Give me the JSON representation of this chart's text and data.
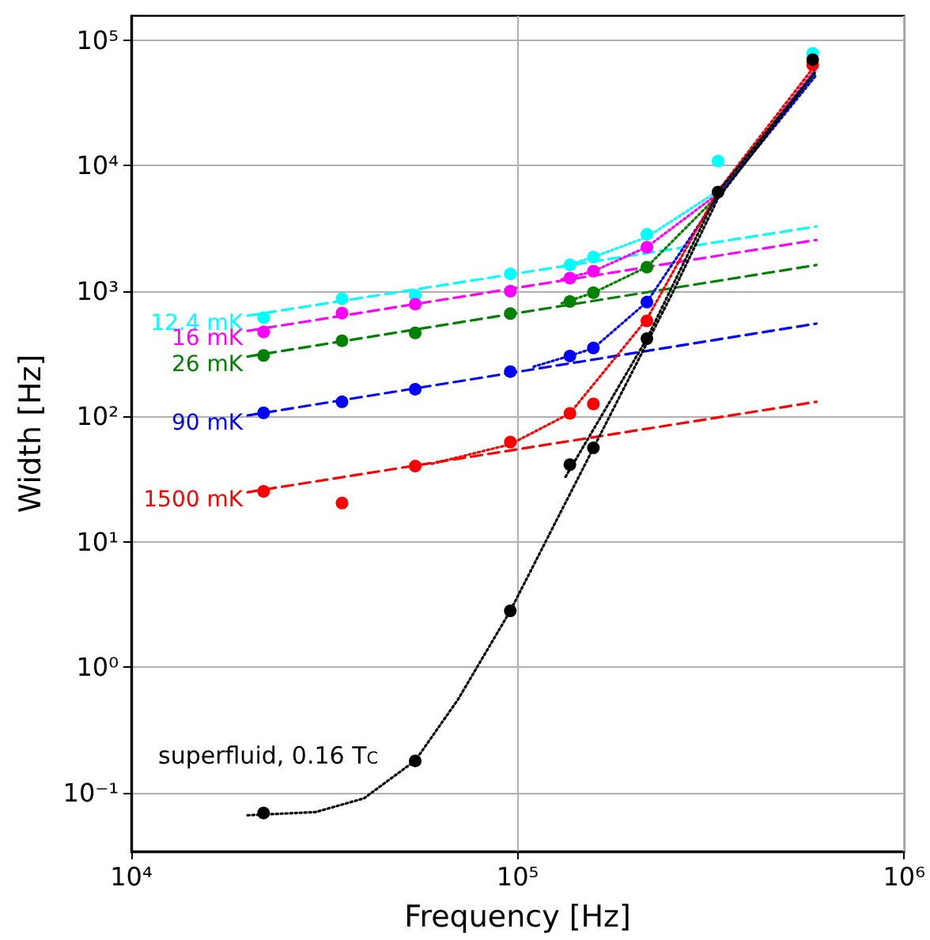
{
  "chart_data": {
    "type": "scatter",
    "xlabel": "Frequency [Hz]",
    "ylabel": "Width [Hz]",
    "log": "xy",
    "grid": true,
    "xlim": [
      10000,
      1000000
    ],
    "ylim": [
      0.034,
      157000
    ],
    "xticks": [
      {
        "value": 10000,
        "label": "10⁴"
      },
      {
        "value": 100000,
        "label": "10⁵"
      },
      {
        "value": 1000000,
        "label": "10⁶"
      }
    ],
    "yticks": [
      {
        "value": 0.1,
        "label": "10⁻¹"
      },
      {
        "value": 1,
        "label": "10⁰"
      },
      {
        "value": 10,
        "label": "10¹"
      },
      {
        "value": 100,
        "label": "10²"
      },
      {
        "value": 1000,
        "label": "10³"
      },
      {
        "value": 10000,
        "label": "10⁴"
      },
      {
        "value": 100000,
        "label": "10⁵"
      }
    ],
    "annotations": [
      "superfluid, 0.16 T$_{C}$"
    ],
    "series": [
      {
        "marker": "circle",
        "color": "#00ffff",
        "x": [
          22000,
          35100,
          54300,
          95700,
          157000
        ],
        "values": [
          614,
          870,
          925,
          1372,
          1866
        ]
      },
      {
        "marker": "circle",
        "color": "#00ffff",
        "x": [
          136500,
          216000,
          330000,
          580000
        ],
        "values": [
          1620,
          2840,
          10900,
          78700
        ]
      },
      {
        "type": "line",
        "name": "12.4 mK",
        "line_style": "dashed",
        "marker": "none",
        "color": "#00ffff",
        "x": [
          20000,
          593000
        ],
        "values": [
          637,
          3280
        ]
      },
      {
        "type": "line",
        "line_style": "dotted",
        "marker": "none",
        "color": "#00ffff",
        "x": [
          130000,
          157000,
          216000,
          330000,
          590000
        ],
        "values": [
          1560,
          1870,
          2700,
          6300,
          56700
        ]
      },
      {
        "marker": "circle",
        "color": "#ff00ff",
        "x": [
          22000,
          35100,
          54300,
          95700,
          157000
        ],
        "values": [
          473,
          668,
          787,
          1000,
          1443
        ]
      },
      {
        "marker": "circle",
        "color": "#ff00ff",
        "x": [
          136500,
          216000
        ],
        "values": [
          1270,
          2240
        ]
      },
      {
        "type": "line",
        "name": "16 mK",
        "line_style": "dashed",
        "marker": "none",
        "color": "#ff00ff",
        "x": [
          20000,
          593000
        ],
        "values": [
          482,
          2560
        ]
      },
      {
        "type": "line",
        "line_style": "dotted",
        "marker": "none",
        "color": "#ff00ff",
        "x": [
          130000,
          157000,
          216000,
          330000,
          590000
        ],
        "values": [
          1240,
          1440,
          2250,
          6000,
          59000
        ]
      },
      {
        "marker": "circle",
        "color": "#008000",
        "x": [
          22000,
          35100,
          54300,
          95700,
          157000
        ],
        "values": [
          307,
          402,
          464,
          662,
          972
        ]
      },
      {
        "marker": "circle",
        "color": "#008000",
        "x": [
          136500,
          216000
        ],
        "values": [
          826,
          1553
        ]
      },
      {
        "type": "line",
        "name": "26 mK",
        "line_style": "dashed",
        "marker": "none",
        "color": "#008000",
        "x": [
          20000,
          593000
        ],
        "values": [
          301,
          1616
        ]
      },
      {
        "type": "line",
        "line_style": "dotted",
        "marker": "none",
        "color": "#008000",
        "x": [
          130000,
          157000,
          216000,
          330000,
          590000
        ],
        "values": [
          800,
          970,
          1560,
          5800,
          54000
        ]
      },
      {
        "marker": "circle",
        "color": "#0000ff",
        "x": [
          22000,
          35100,
          54300,
          95700,
          157000
        ],
        "values": [
          107,
          131,
          165,
          228,
          352
        ]
      },
      {
        "marker": "circle",
        "color": "#0000ff",
        "x": [
          136500,
          216000
        ],
        "values": [
          304,
          817
        ]
      },
      {
        "type": "line",
        "name": "90 mK",
        "line_style": "dashed",
        "marker": "none",
        "color": "#0000ff",
        "x": [
          20000,
          593000
        ],
        "values": [
          102,
          551
        ]
      },
      {
        "type": "line",
        "line_style": "dotted",
        "marker": "none",
        "color": "#0000ff",
        "x": [
          110000,
          136500,
          157000,
          216000,
          330000,
          590000
        ],
        "values": [
          250,
          305,
          350,
          820,
          5700,
          52000
        ]
      },
      {
        "marker": "circle",
        "color": "#ff0000",
        "x": [
          22000,
          35100,
          54300,
          95700,
          157000
        ],
        "values": [
          25.3,
          20.4,
          40.2,
          62.5,
          126
        ]
      },
      {
        "marker": "circle",
        "color": "#ff0000",
        "x": [
          136500,
          216000,
          580000
        ],
        "values": [
          106,
          579,
          63700
        ]
      },
      {
        "type": "line",
        "name": "1500 mK",
        "line_style": "dashed",
        "marker": "none",
        "color": "#ff0000",
        "x": [
          20000,
          593000
        ],
        "values": [
          24.9,
          131
        ]
      },
      {
        "type": "line",
        "line_style": "dotted",
        "marker": "none",
        "color": "#ff0000",
        "x": [
          60000,
          95700,
          136500,
          216000,
          330000,
          590000
        ],
        "values": [
          42,
          60,
          106,
          600,
          6300,
          64000
        ]
      },
      {
        "marker": "circle",
        "color": "#000000",
        "x": [
          22000,
          54300,
          95700,
          157000
        ],
        "values": [
          0.0688,
          0.179,
          2.82,
          56.2
        ]
      },
      {
        "marker": "circle",
        "color": "#000000",
        "x": [
          136500,
          216000,
          330000,
          580000
        ],
        "values": [
          41.3,
          418,
          6170,
          70200
        ]
      },
      {
        "type": "line",
        "line_style": "dotted",
        "marker": "none",
        "color": "#000000",
        "x": [
          20000,
          30000,
          40000,
          54300,
          70000,
          95700,
          157000,
          252000,
          330000,
          590000
        ],
        "values": [
          0.066,
          0.07,
          0.09,
          0.18,
          0.55,
          2.82,
          56,
          977,
          5500,
          56700
        ]
      },
      {
        "type": "line",
        "line_style": "dotted",
        "marker": "none",
        "color": "#000000",
        "x": [
          133000,
          216000,
          330000,
          590000
        ],
        "values": [
          33,
          418,
          6170,
          56700
        ]
      }
    ]
  }
}
